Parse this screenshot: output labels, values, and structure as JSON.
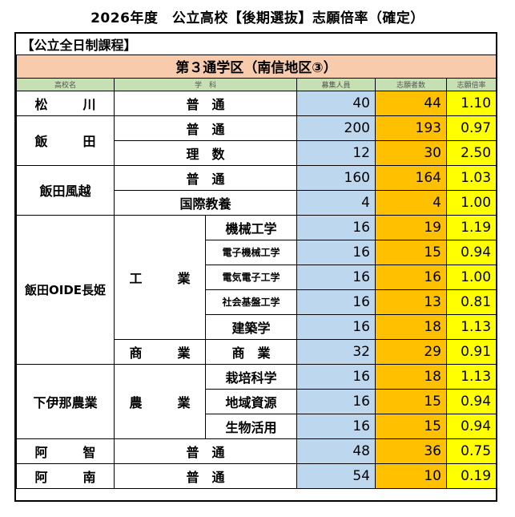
{
  "title": "2026年度　公立高校【後期選抜】志願倍率（確定）",
  "course": "【公立全日制課程】",
  "district": "第３通学区（南信地区③）",
  "headers": {
    "school": "高校名",
    "dept": "学　科",
    "capacity": "募集人員",
    "applicants": "志願者数",
    "rate": "志願倍率"
  },
  "rows": [
    {
      "school": "松　川",
      "dept": "普　通",
      "capacity": "40",
      "applicants": "44",
      "rate": "1.10"
    },
    {
      "school": "飯　田",
      "dept": "普　通",
      "capacity": "200",
      "applicants": "193",
      "rate": "0.97"
    },
    {
      "dept": "理　数",
      "capacity": "12",
      "applicants": "30",
      "rate": "2.50"
    },
    {
      "school": "飯田風越",
      "dept": "普　通",
      "capacity": "160",
      "applicants": "164",
      "rate": "1.03"
    },
    {
      "dept": "国際教養",
      "capacity": "4",
      "applicants": "4",
      "rate": "1.00"
    },
    {
      "school": "飯田OIDE長姫",
      "sub": "工　業",
      "dept": "機械工学",
      "capacity": "16",
      "applicants": "19",
      "rate": "1.19"
    },
    {
      "dept": "電子機械工学",
      "capacity": "16",
      "applicants": "15",
      "rate": "0.94"
    },
    {
      "dept": "電気電子工学",
      "capacity": "16",
      "applicants": "16",
      "rate": "1.00"
    },
    {
      "dept": "社会基盤工学",
      "capacity": "16",
      "applicants": "13",
      "rate": "0.81"
    },
    {
      "dept": "建築学",
      "capacity": "16",
      "applicants": "18",
      "rate": "1.13"
    },
    {
      "sub": "商　業",
      "dept": "商　業",
      "capacity": "32",
      "applicants": "29",
      "rate": "0.91"
    },
    {
      "school": "下伊那農業",
      "sub": "農　業",
      "dept": "栽培科学",
      "capacity": "16",
      "applicants": "18",
      "rate": "1.13"
    },
    {
      "dept": "地域資源",
      "capacity": "16",
      "applicants": "15",
      "rate": "0.94"
    },
    {
      "dept": "生物活用",
      "capacity": "16",
      "applicants": "15",
      "rate": "0.94"
    },
    {
      "school": "阿　智",
      "dept": "普　通",
      "capacity": "48",
      "applicants": "36",
      "rate": "0.75"
    },
    {
      "school": "阿　南",
      "dept": "普　通",
      "capacity": "54",
      "applicants": "10",
      "rate": "0.19"
    }
  ]
}
